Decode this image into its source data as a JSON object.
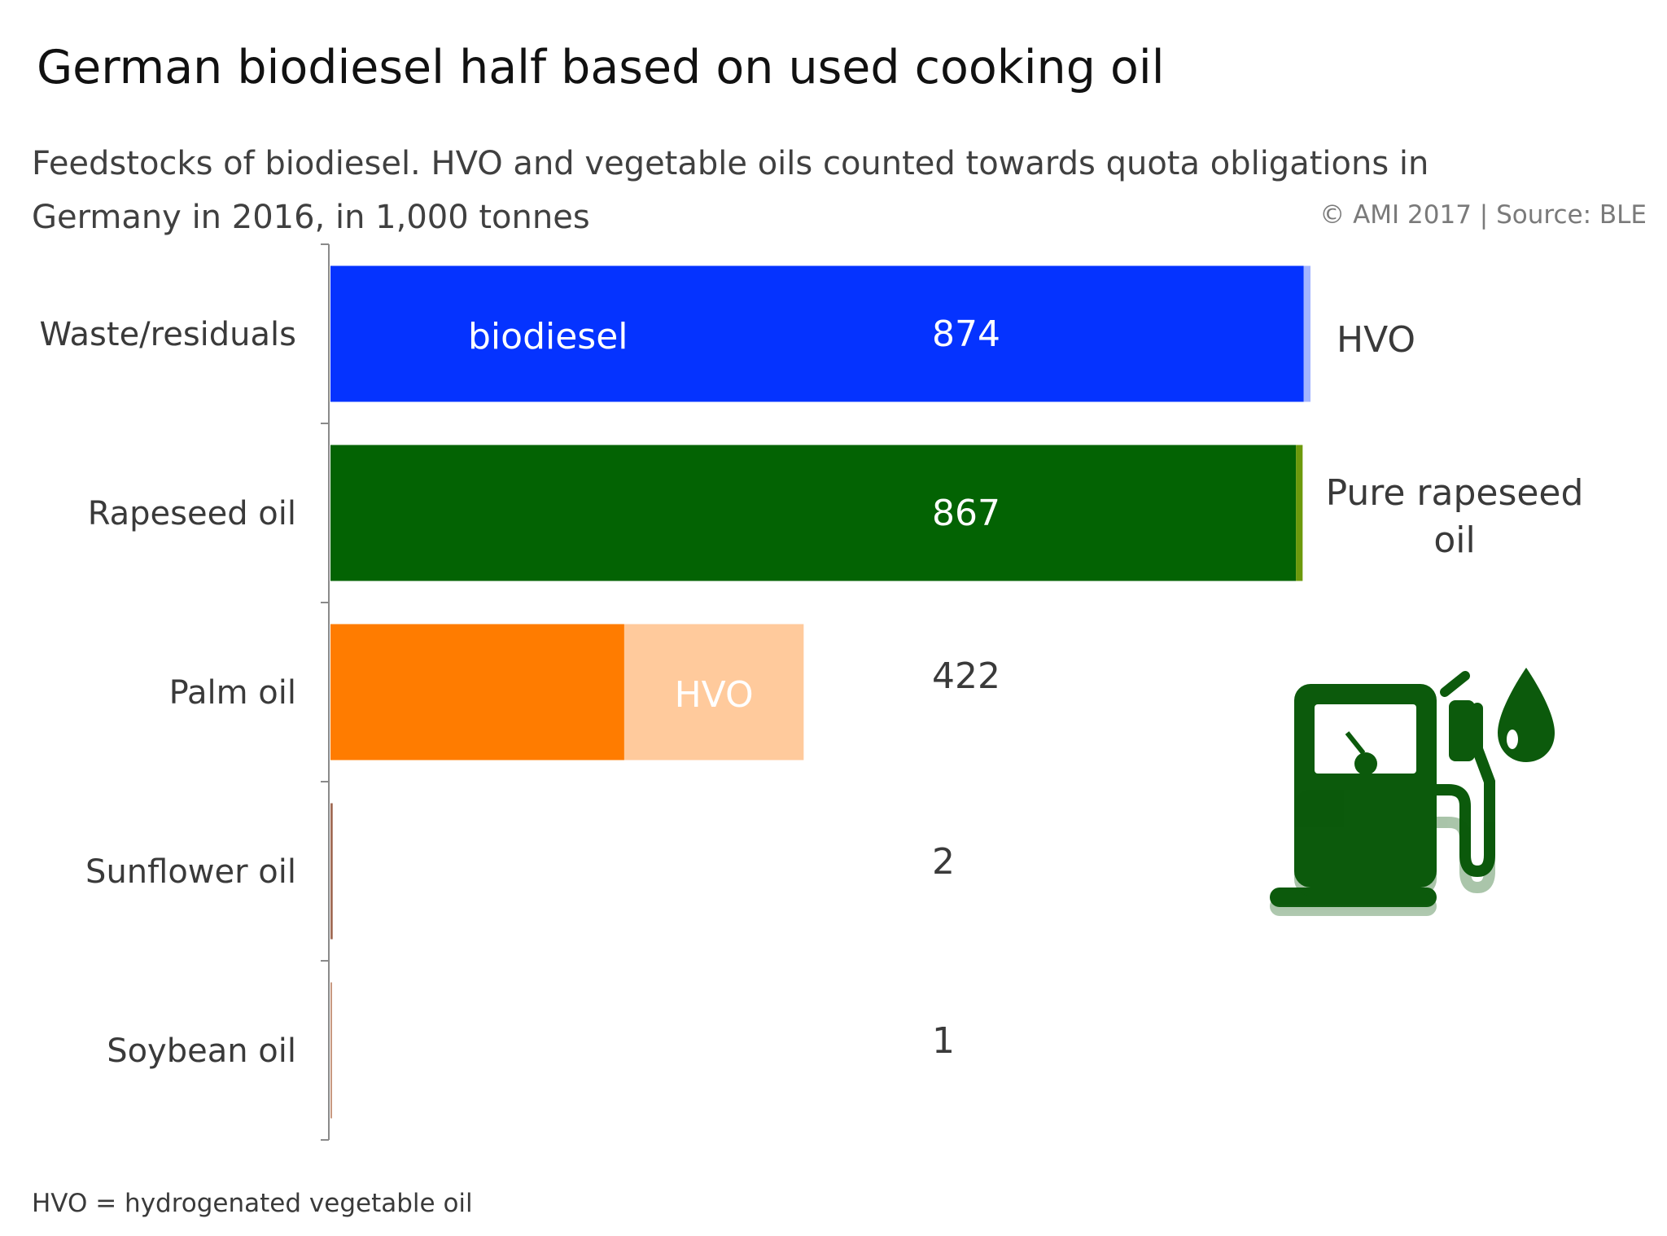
{
  "title": "German biodiesel half based on used cooking oil",
  "subtitle": "Feedstocks of biodiesel. HVO and vegetable oils counted towards quota obligations in Germany in 2016, in 1,000 tonnes",
  "source": "© AMI 2017 | Source: BLE",
  "footnote": "HVO = hydrogenated vegetable oil",
  "icons": [
    "fuel-pump-icon",
    "oil-drop-icon"
  ],
  "chart_data": {
    "type": "bar",
    "orientation": "horizontal",
    "stacked": true,
    "title": "German biodiesel half based on used cooking oil",
    "xlim": [
      0,
      874
    ],
    "categories": [
      "Waste/residuals",
      "Rapeseed oil",
      "Palm oil",
      "Sunflower oil",
      "Soybean oil"
    ],
    "totals": [
      874,
      867,
      422,
      2,
      1
    ],
    "total_labels": [
      "874",
      "867",
      "422",
      "2",
      "1"
    ],
    "segments": [
      [
        {
          "label": "biodiesel",
          "value": 868,
          "color": "#0533ff",
          "text_color": "#ffffff"
        },
        {
          "label": "HVO",
          "value": 6,
          "color": "#a3b4ff",
          "text_color": "#3a3a3a"
        }
      ],
      [
        {
          "label": "",
          "value": 861,
          "color": "#036303",
          "text_color": "#ffffff"
        },
        {
          "label": "Pure rapeseed oil",
          "value": 6,
          "color": "#6c9a0c",
          "text_color": "#3a3a3a"
        }
      ],
      [
        {
          "label": "",
          "value": 262,
          "color": "#ff7c00",
          "text_color": "#ffffff"
        },
        {
          "label": "HVO",
          "value": 160,
          "color": "#ffca9c",
          "text_color": "#ffffff"
        }
      ],
      [
        {
          "label": "",
          "value": 2,
          "color": "#a06a54",
          "text_color": "#3a3a3a"
        }
      ],
      [
        {
          "label": "",
          "value": 1,
          "color": "#c89880",
          "text_color": "#3a3a3a"
        }
      ]
    ],
    "grid": false,
    "legend": "none"
  }
}
